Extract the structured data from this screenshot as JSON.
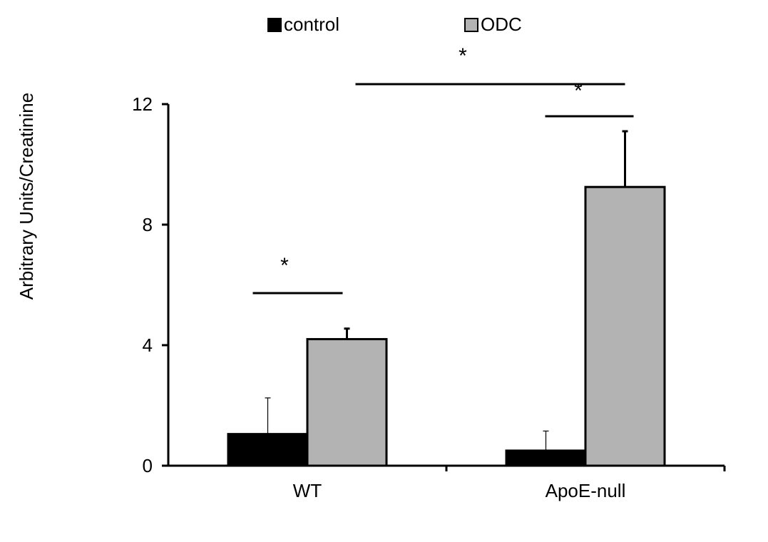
{
  "chart_data": {
    "type": "bar",
    "title": "",
    "xlabel": "",
    "ylabel": "Arbitrary Units/Creatinine",
    "ylim": [
      0,
      12
    ],
    "yticks": [
      0,
      4,
      8,
      12
    ],
    "grid": false,
    "legend_position": "top",
    "categories": [
      "WT",
      "ApoE-null"
    ],
    "series": [
      {
        "name": "control",
        "color": "#000000",
        "values": [
          1.05,
          0.5
        ],
        "errors": [
          1.2,
          0.65
        ]
      },
      {
        "name": "ODC",
        "color": "#b3b3b3",
        "values": [
          4.2,
          9.25
        ],
        "errors": [
          0.35,
          1.85
        ]
      }
    ],
    "annotations": [
      {
        "label": "*",
        "kind": "significance",
        "between": "WT control vs WT ODC"
      },
      {
        "label": "*",
        "kind": "significance",
        "between": "ApoE-null control vs ApoE-null ODC"
      },
      {
        "label": "*",
        "kind": "significance",
        "between": "WT ODC vs ApoE-null ODC"
      }
    ]
  }
}
